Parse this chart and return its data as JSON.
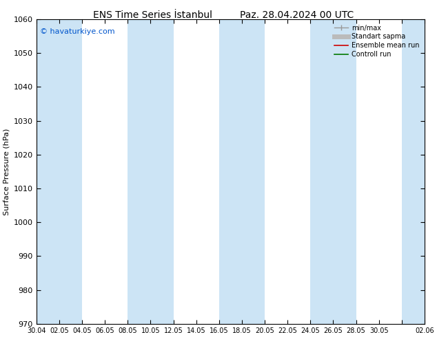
{
  "title_left": "ENS Time Series İstanbul",
  "title_right": "Paz. 28.04.2024 00 UTC",
  "ylabel": "Surface Pressure (hPa)",
  "copyright": "© havaturkiye.com",
  "ylim": [
    970,
    1060
  ],
  "yticks": [
    970,
    980,
    990,
    1000,
    1010,
    1020,
    1030,
    1040,
    1050,
    1060
  ],
  "xtick_labels": [
    "30.04",
    "02.05",
    "04.05",
    "06.05",
    "08.05",
    "10.05",
    "12.05",
    "14.05",
    "16.05",
    "18.05",
    "20.05",
    "22.05",
    "24.05",
    "26.05",
    "28.05",
    "30.05",
    "",
    "02.06"
  ],
  "band_color_light": "#cce4f5",
  "band_color_white": "#ffffff",
  "background_color": "#ffffff",
  "legend_entries": [
    "min/max",
    "Standart sapma",
    "Ensemble mean run",
    "Controll run"
  ],
  "figsize": [
    6.34,
    4.9
  ],
  "dpi": 100,
  "n_xticks": 18
}
